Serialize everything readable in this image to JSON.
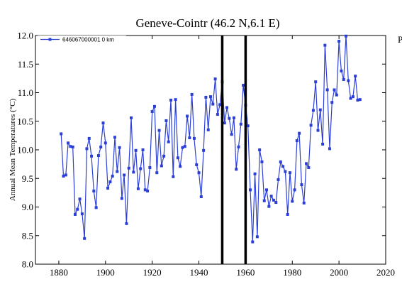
{
  "chart_data": {
    "type": "line",
    "title": "Geneve-Cointr (46.2 N,6.1 E)",
    "ylabel": "Annual Mean Temperatures (°C)",
    "xlabel": "",
    "xlim": [
      1870,
      2020
    ],
    "ylim": [
      8.0,
      12.0
    ],
    "xticks": [
      1880,
      1900,
      1920,
      1940,
      1960,
      1980,
      2000,
      2020
    ],
    "yticks": [
      "8.0",
      "8.5",
      "9.0",
      "9.5",
      "10.0",
      "10.5",
      "11.0",
      "11.5",
      "12.0"
    ],
    "legend_position": "top-left",
    "series": [
      {
        "name": "646067000001  0 km",
        "color": "#2b3fd6",
        "marker": "square",
        "x": [
          1881,
          1882,
          1883,
          1884,
          1885,
          1886,
          1887,
          1888,
          1889,
          1890,
          1891,
          1892,
          1893,
          1894,
          1895,
          1896,
          1897,
          1898,
          1899,
          1900,
          1901,
          1902,
          1903,
          1904,
          1905,
          1906,
          1907,
          1908,
          1909,
          1910,
          1911,
          1912,
          1913,
          1914,
          1915,
          1916,
          1917,
          1918,
          1919,
          1920,
          1921,
          1922,
          1923,
          1924,
          1925,
          1926,
          1927,
          1928,
          1929,
          1930,
          1931,
          1932,
          1933,
          1934,
          1935,
          1936,
          1937,
          1938,
          1939,
          1940,
          1941,
          1942,
          1943,
          1944,
          1945,
          1946,
          1947,
          1948,
          1949,
          1950,
          1951,
          1952,
          1953,
          1954,
          1955,
          1956,
          1957,
          1958,
          1959,
          1960,
          1961,
          1962,
          1963,
          1964,
          1965,
          1966,
          1967,
          1968,
          1969,
          1970,
          1971,
          1972,
          1973,
          1974,
          1975,
          1976,
          1977,
          1978,
          1979,
          1980,
          1981,
          1982,
          1983,
          1984,
          1985,
          1986,
          1987,
          1988,
          1989,
          1990,
          1991,
          1992,
          1993,
          1994,
          1995,
          1996,
          1997,
          1998,
          1999,
          2000,
          2001,
          2002,
          2003,
          2004,
          2005,
          2006,
          2007,
          2008,
          2009
        ],
        "values": [
          10.28,
          9.54,
          9.56,
          10.12,
          10.06,
          10.05,
          8.87,
          8.96,
          9.14,
          8.88,
          8.45,
          10.02,
          10.2,
          9.89,
          9.28,
          8.99,
          9.9,
          10.05,
          10.47,
          10.12,
          9.33,
          9.44,
          9.54,
          10.22,
          9.62,
          10.04,
          9.15,
          9.56,
          8.71,
          9.68,
          10.56,
          9.61,
          9.99,
          9.32,
          9.67,
          10.0,
          9.3,
          9.28,
          9.69,
          10.67,
          10.76,
          9.6,
          10.34,
          9.72,
          9.89,
          10.51,
          10.14,
          10.87,
          9.53,
          10.88,
          9.86,
          9.71,
          10.04,
          10.06,
          10.59,
          10.21,
          10.97,
          10.2,
          9.74,
          9.6,
          9.18,
          9.99,
          10.92,
          10.35,
          10.93,
          10.8,
          11.24,
          10.62,
          10.79,
          11.19,
          10.47,
          10.74,
          10.55,
          10.27,
          10.56,
          9.66,
          10.05,
          10.45,
          11.13,
          10.78,
          10.42,
          9.3,
          8.39,
          9.58,
          8.48,
          10.0,
          9.79,
          9.11,
          9.3,
          9.01,
          9.19,
          9.12,
          9.08,
          9.48,
          9.79,
          9.71,
          9.62,
          8.87,
          9.6,
          9.1,
          9.3,
          10.16,
          10.29,
          9.39,
          9.07,
          9.76,
          9.69,
          10.43,
          10.69,
          11.19,
          10.34,
          10.7,
          10.1,
          11.83,
          11.05,
          10.02,
          10.83,
          11.05,
          10.96,
          11.9,
          11.38,
          11.23,
          11.99,
          11.21,
          10.9,
          10.93,
          11.29,
          10.87,
          10.88
        ]
      }
    ],
    "reference_lines": [
      {
        "axis": "x",
        "value": 1950,
        "color": "#000000"
      },
      {
        "axis": "x",
        "value": 1960,
        "color": "#000000"
      }
    ]
  },
  "corner_text": "P"
}
